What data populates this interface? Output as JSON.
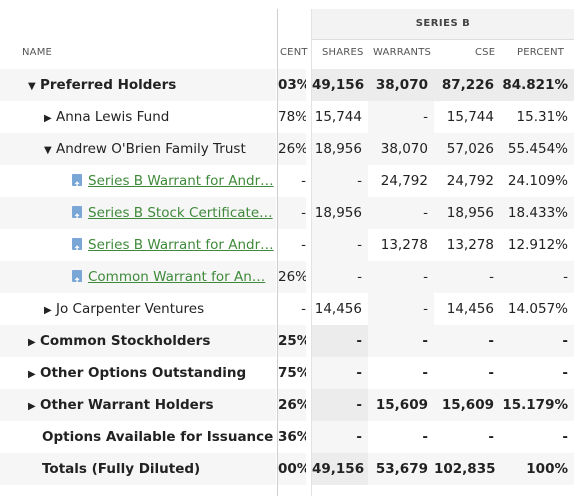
{
  "header": {
    "group_label": "SERIES B",
    "col_name": "NAME",
    "col_cent": "CENT",
    "col_shares": "SHARES",
    "col_warrants": "WARRANTS",
    "col_cse": "CSE",
    "col_percent": "PERCENT"
  },
  "rows": [
    {
      "name": "Preferred Holders",
      "cent": "03%",
      "shares": "49,156",
      "warrants": "38,070",
      "cse": "87,226",
      "percent": "84.821%"
    },
    {
      "name": "Anna Lewis Fund",
      "cent": "78%",
      "shares": "15,744",
      "warrants": "-",
      "cse": "15,744",
      "percent": "15.31%"
    },
    {
      "name": "Andrew O'Brien Family Trust",
      "cent": "26%",
      "shares": "18,956",
      "warrants": "38,070",
      "cse": "57,026",
      "percent": "55.454%"
    },
    {
      "name": "Series B Warrant for Andr…",
      "cent": "-",
      "shares": "-",
      "warrants": "24,792",
      "cse": "24,792",
      "percent": "24.109%"
    },
    {
      "name": "Series B Stock Certificate…",
      "cent": "-",
      "shares": "18,956",
      "warrants": "-",
      "cse": "18,956",
      "percent": "18.433%"
    },
    {
      "name": "Series B Warrant for Andr…",
      "cent": "-",
      "shares": "-",
      "warrants": "13,278",
      "cse": "13,278",
      "percent": "12.912%"
    },
    {
      "name": "Common Warrant for An…",
      "cent": "26%",
      "shares": "-",
      "warrants": "-",
      "cse": "-",
      "percent": "-"
    },
    {
      "name": "Jo Carpenter Ventures",
      "cent": "-",
      "shares": "14,456",
      "warrants": "-",
      "cse": "14,456",
      "percent": "14.057%"
    },
    {
      "name": "Common Stockholders",
      "cent": "25%",
      "shares": "-",
      "warrants": "-",
      "cse": "-",
      "percent": "-"
    },
    {
      "name": "Other Options Outstanding",
      "cent": "75%",
      "shares": "-",
      "warrants": "-",
      "cse": "-",
      "percent": "-"
    },
    {
      "name": "Other Warrant Holders",
      "cent": "26%",
      "shares": "-",
      "warrants": "15,609",
      "cse": "15,609",
      "percent": "15.179%"
    },
    {
      "name": "Options Available for Issuance",
      "cent": "36%",
      "shares": "-",
      "warrants": "-",
      "cse": "-",
      "percent": "-"
    },
    {
      "name": "Totals (Fully Diluted)",
      "cent": "00%",
      "shares": "49,156",
      "warrants": "53,679",
      "cse": "102,835",
      "percent": "100%"
    }
  ],
  "colors": {
    "link": "#3f8a3a",
    "icon": "#7aa7d6"
  }
}
